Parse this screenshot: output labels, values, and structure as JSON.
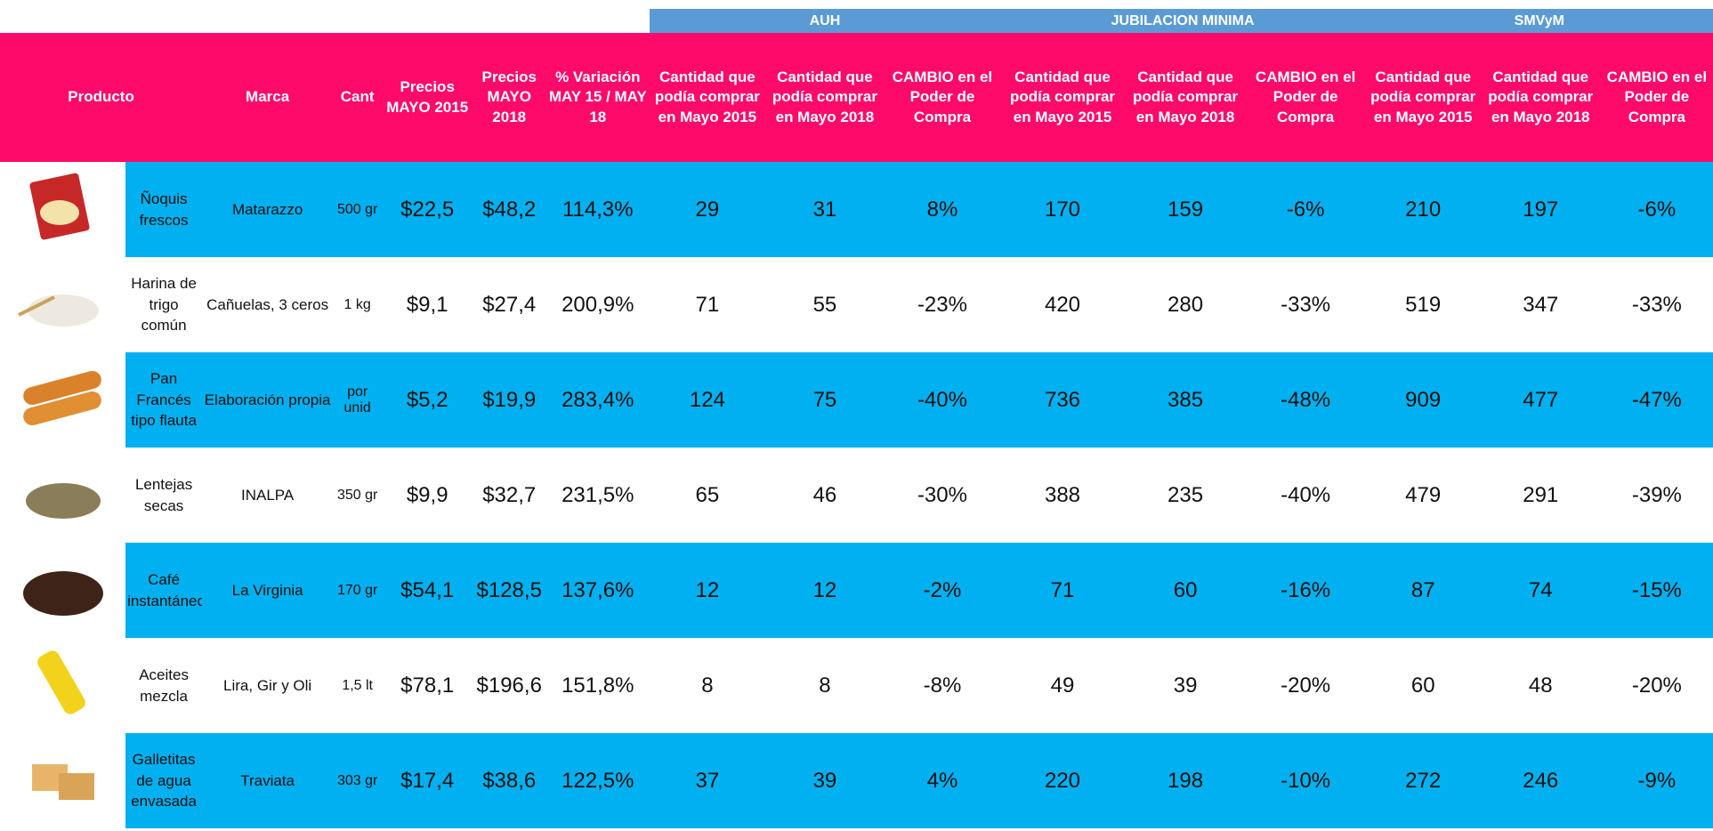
{
  "groups": [
    "AUH",
    "JUBILACION MINIMA",
    "SMVyM"
  ],
  "headers": [
    "Producto",
    "Marca",
    "Cant",
    "Precios MAYO 2015",
    "Precios MAYO 2018",
    "% Variación MAY 15 / MAY 18",
    "Cantidad que podía comprar en Mayo 2015",
    "Cantidad que podía comprar en Mayo 2018",
    "CAMBIO en el Poder de Compra",
    "Cantidad que podía comprar en Mayo 2015",
    "Cantidad que podía comprar en Mayo 2018",
    "CAMBIO en el Poder de Compra",
    "Cantidad que podía comprar en Mayo 2015",
    "Cantidad que podía comprar en Mayo 2018",
    "CAMBIO en el Poder de Compra"
  ],
  "rows": [
    [
      "Ñoquis frescos",
      "Matarazzo",
      "500 gr",
      "$22,5",
      "$48,2",
      "114,3%",
      "29",
      "31",
      "8%",
      "170",
      "159",
      "-6%",
      "210",
      "197",
      "-6%"
    ],
    [
      "Harina de trigo común",
      "Cañuelas, 3 ceros",
      "1 kg",
      "$9,1",
      "$27,4",
      "200,9%",
      "71",
      "55",
      "-23%",
      "420",
      "280",
      "-33%",
      "519",
      "347",
      "-33%"
    ],
    [
      "Pan Francés tipo flauta",
      "Elaboración propia",
      "por unid",
      "$5,2",
      "$19,9",
      "283,4%",
      "124",
      "75",
      "-40%",
      "736",
      "385",
      "-48%",
      "909",
      "477",
      "-47%"
    ],
    [
      "Lentejas secas",
      "INALPA",
      "350 gr",
      "$9,9",
      "$32,7",
      "231,5%",
      "65",
      "46",
      "-30%",
      "388",
      "235",
      "-40%",
      "479",
      "291",
      "-39%"
    ],
    [
      "Café instantáneo",
      "La Virginia",
      "170 gr",
      "$54,1",
      "$128,5",
      "137,6%",
      "12",
      "12",
      "-2%",
      "71",
      "60",
      "-16%",
      "87",
      "74",
      "-15%"
    ],
    [
      "Aceites mezcla",
      "Lira, Gir y Oli",
      "1,5 lt",
      "$78,1",
      "$196,6",
      "151,8%",
      "8",
      "8",
      "-8%",
      "49",
      "39",
      "-20%",
      "60",
      "48",
      "-20%"
    ],
    [
      "Galletitas de agua envasada",
      "Traviata",
      "303 gr",
      "$17,4",
      "$38,6",
      "122,5%",
      "37",
      "39",
      "4%",
      "220",
      "198",
      "-10%",
      "272",
      "246",
      "-9%"
    ]
  ]
}
